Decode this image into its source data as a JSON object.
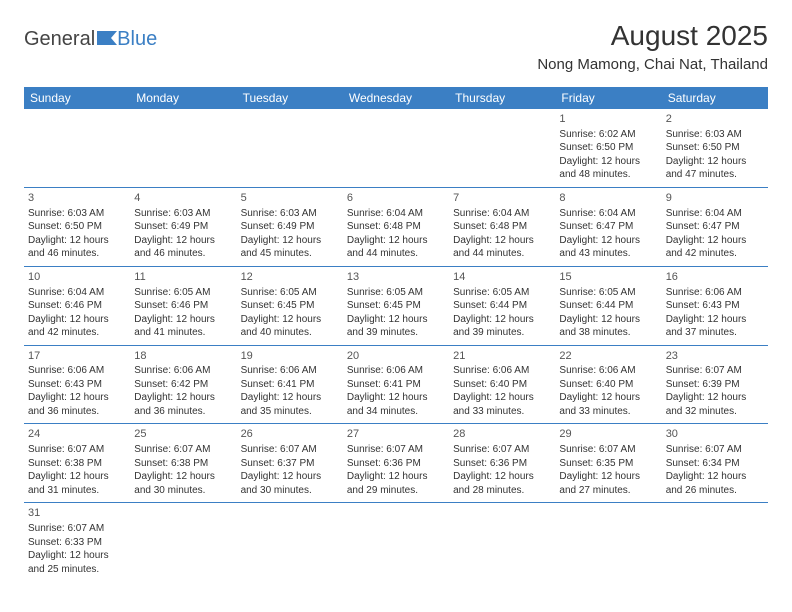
{
  "branding": {
    "logo_general": "General",
    "logo_blue": "Blue",
    "logo_icon_color": "#3b7fc4"
  },
  "title": {
    "month_year": "August 2025",
    "location": "Nong Mamong, Chai Nat, Thailand"
  },
  "colors": {
    "header_bg": "#3b7fc4",
    "header_text": "#ffffff",
    "row_border": "#3b7fc4",
    "body_text": "#333333",
    "background": "#ffffff"
  },
  "typography": {
    "title_fontsize": 28,
    "location_fontsize": 15,
    "dayheader_fontsize": 12,
    "cell_fontsize": 10
  },
  "calendar": {
    "day_headers": [
      "Sunday",
      "Monday",
      "Tuesday",
      "Wednesday",
      "Thursday",
      "Friday",
      "Saturday"
    ],
    "weeks": [
      [
        null,
        null,
        null,
        null,
        null,
        {
          "day": "1",
          "sunrise": "Sunrise: 6:02 AM",
          "sunset": "Sunset: 6:50 PM",
          "daylight1": "Daylight: 12 hours",
          "daylight2": "and 48 minutes."
        },
        {
          "day": "2",
          "sunrise": "Sunrise: 6:03 AM",
          "sunset": "Sunset: 6:50 PM",
          "daylight1": "Daylight: 12 hours",
          "daylight2": "and 47 minutes."
        }
      ],
      [
        {
          "day": "3",
          "sunrise": "Sunrise: 6:03 AM",
          "sunset": "Sunset: 6:50 PM",
          "daylight1": "Daylight: 12 hours",
          "daylight2": "and 46 minutes."
        },
        {
          "day": "4",
          "sunrise": "Sunrise: 6:03 AM",
          "sunset": "Sunset: 6:49 PM",
          "daylight1": "Daylight: 12 hours",
          "daylight2": "and 46 minutes."
        },
        {
          "day": "5",
          "sunrise": "Sunrise: 6:03 AM",
          "sunset": "Sunset: 6:49 PM",
          "daylight1": "Daylight: 12 hours",
          "daylight2": "and 45 minutes."
        },
        {
          "day": "6",
          "sunrise": "Sunrise: 6:04 AM",
          "sunset": "Sunset: 6:48 PM",
          "daylight1": "Daylight: 12 hours",
          "daylight2": "and 44 minutes."
        },
        {
          "day": "7",
          "sunrise": "Sunrise: 6:04 AM",
          "sunset": "Sunset: 6:48 PM",
          "daylight1": "Daylight: 12 hours",
          "daylight2": "and 44 minutes."
        },
        {
          "day": "8",
          "sunrise": "Sunrise: 6:04 AM",
          "sunset": "Sunset: 6:47 PM",
          "daylight1": "Daylight: 12 hours",
          "daylight2": "and 43 minutes."
        },
        {
          "day": "9",
          "sunrise": "Sunrise: 6:04 AM",
          "sunset": "Sunset: 6:47 PM",
          "daylight1": "Daylight: 12 hours",
          "daylight2": "and 42 minutes."
        }
      ],
      [
        {
          "day": "10",
          "sunrise": "Sunrise: 6:04 AM",
          "sunset": "Sunset: 6:46 PM",
          "daylight1": "Daylight: 12 hours",
          "daylight2": "and 42 minutes."
        },
        {
          "day": "11",
          "sunrise": "Sunrise: 6:05 AM",
          "sunset": "Sunset: 6:46 PM",
          "daylight1": "Daylight: 12 hours",
          "daylight2": "and 41 minutes."
        },
        {
          "day": "12",
          "sunrise": "Sunrise: 6:05 AM",
          "sunset": "Sunset: 6:45 PM",
          "daylight1": "Daylight: 12 hours",
          "daylight2": "and 40 minutes."
        },
        {
          "day": "13",
          "sunrise": "Sunrise: 6:05 AM",
          "sunset": "Sunset: 6:45 PM",
          "daylight1": "Daylight: 12 hours",
          "daylight2": "and 39 minutes."
        },
        {
          "day": "14",
          "sunrise": "Sunrise: 6:05 AM",
          "sunset": "Sunset: 6:44 PM",
          "daylight1": "Daylight: 12 hours",
          "daylight2": "and 39 minutes."
        },
        {
          "day": "15",
          "sunrise": "Sunrise: 6:05 AM",
          "sunset": "Sunset: 6:44 PM",
          "daylight1": "Daylight: 12 hours",
          "daylight2": "and 38 minutes."
        },
        {
          "day": "16",
          "sunrise": "Sunrise: 6:06 AM",
          "sunset": "Sunset: 6:43 PM",
          "daylight1": "Daylight: 12 hours",
          "daylight2": "and 37 minutes."
        }
      ],
      [
        {
          "day": "17",
          "sunrise": "Sunrise: 6:06 AM",
          "sunset": "Sunset: 6:43 PM",
          "daylight1": "Daylight: 12 hours",
          "daylight2": "and 36 minutes."
        },
        {
          "day": "18",
          "sunrise": "Sunrise: 6:06 AM",
          "sunset": "Sunset: 6:42 PM",
          "daylight1": "Daylight: 12 hours",
          "daylight2": "and 36 minutes."
        },
        {
          "day": "19",
          "sunrise": "Sunrise: 6:06 AM",
          "sunset": "Sunset: 6:41 PM",
          "daylight1": "Daylight: 12 hours",
          "daylight2": "and 35 minutes."
        },
        {
          "day": "20",
          "sunrise": "Sunrise: 6:06 AM",
          "sunset": "Sunset: 6:41 PM",
          "daylight1": "Daylight: 12 hours",
          "daylight2": "and 34 minutes."
        },
        {
          "day": "21",
          "sunrise": "Sunrise: 6:06 AM",
          "sunset": "Sunset: 6:40 PM",
          "daylight1": "Daylight: 12 hours",
          "daylight2": "and 33 minutes."
        },
        {
          "day": "22",
          "sunrise": "Sunrise: 6:06 AM",
          "sunset": "Sunset: 6:40 PM",
          "daylight1": "Daylight: 12 hours",
          "daylight2": "and 33 minutes."
        },
        {
          "day": "23",
          "sunrise": "Sunrise: 6:07 AM",
          "sunset": "Sunset: 6:39 PM",
          "daylight1": "Daylight: 12 hours",
          "daylight2": "and 32 minutes."
        }
      ],
      [
        {
          "day": "24",
          "sunrise": "Sunrise: 6:07 AM",
          "sunset": "Sunset: 6:38 PM",
          "daylight1": "Daylight: 12 hours",
          "daylight2": "and 31 minutes."
        },
        {
          "day": "25",
          "sunrise": "Sunrise: 6:07 AM",
          "sunset": "Sunset: 6:38 PM",
          "daylight1": "Daylight: 12 hours",
          "daylight2": "and 30 minutes."
        },
        {
          "day": "26",
          "sunrise": "Sunrise: 6:07 AM",
          "sunset": "Sunset: 6:37 PM",
          "daylight1": "Daylight: 12 hours",
          "daylight2": "and 30 minutes."
        },
        {
          "day": "27",
          "sunrise": "Sunrise: 6:07 AM",
          "sunset": "Sunset: 6:36 PM",
          "daylight1": "Daylight: 12 hours",
          "daylight2": "and 29 minutes."
        },
        {
          "day": "28",
          "sunrise": "Sunrise: 6:07 AM",
          "sunset": "Sunset: 6:36 PM",
          "daylight1": "Daylight: 12 hours",
          "daylight2": "and 28 minutes."
        },
        {
          "day": "29",
          "sunrise": "Sunrise: 6:07 AM",
          "sunset": "Sunset: 6:35 PM",
          "daylight1": "Daylight: 12 hours",
          "daylight2": "and 27 minutes."
        },
        {
          "day": "30",
          "sunrise": "Sunrise: 6:07 AM",
          "sunset": "Sunset: 6:34 PM",
          "daylight1": "Daylight: 12 hours",
          "daylight2": "and 26 minutes."
        }
      ],
      [
        {
          "day": "31",
          "sunrise": "Sunrise: 6:07 AM",
          "sunset": "Sunset: 6:33 PM",
          "daylight1": "Daylight: 12 hours",
          "daylight2": "and 25 minutes."
        },
        null,
        null,
        null,
        null,
        null,
        null
      ]
    ]
  }
}
